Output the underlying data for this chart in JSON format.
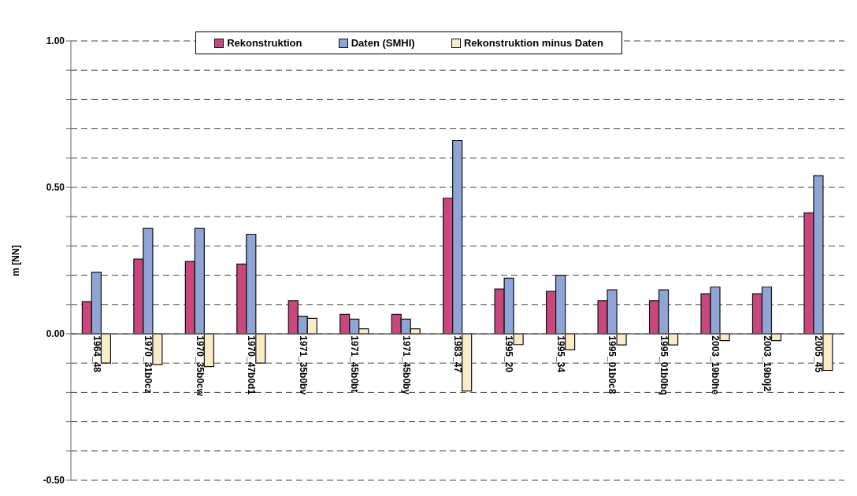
{
  "chart_data": {
    "type": "bar",
    "ylabel": "m [NN]",
    "categories": [
      "1964_48",
      "1970_31b0cz",
      "1970_35b0cw",
      "1970_47b0d1",
      "1971_35b0bv",
      "1971_45b0bt",
      "1971_45b0by",
      "1983_47",
      "1995_20",
      "1995_34",
      "1995_01b0c8",
      "1995_01b0bq",
      "2003_19b0he",
      "2003_19b0j2",
      "2005_45"
    ],
    "series": [
      {
        "name": "Rekonstruktion",
        "color": "#c8487d",
        "values": [
          0.11,
          0.255,
          0.247,
          0.238,
          0.113,
          0.066,
          0.066,
          0.463,
          0.153,
          0.145,
          0.113,
          0.113,
          0.137,
          0.137,
          0.413
        ]
      },
      {
        "name": "Daten (SMHI)",
        "color": "#8fa5d6",
        "values": [
          0.21,
          0.36,
          0.36,
          0.34,
          0.06,
          0.05,
          0.05,
          0.66,
          0.19,
          0.2,
          0.15,
          0.15,
          0.16,
          0.16,
          0.54
        ]
      },
      {
        "name": "Rekonstruktion minus Daten",
        "color": "#f8ecc9",
        "values": [
          -0.1,
          -0.105,
          -0.112,
          -0.1,
          0.053,
          0.017,
          0.017,
          -0.195,
          -0.037,
          -0.055,
          -0.038,
          -0.038,
          -0.023,
          -0.023,
          -0.125
        ]
      }
    ],
    "ylim": [
      -0.5,
      1
    ],
    "yticks": [
      {
        "value": -0.5,
        "label": "-0.50"
      },
      {
        "value": -0.4,
        "label": null
      },
      {
        "value": -0.3,
        "label": null
      },
      {
        "value": -0.2,
        "label": null
      },
      {
        "value": -0.1,
        "label": null
      },
      {
        "value": 0,
        "label": "0.00"
      },
      {
        "value": 0.1,
        "label": null
      },
      {
        "value": 0.2,
        "label": null
      },
      {
        "value": 0.3,
        "label": null
      },
      {
        "value": 0.4,
        "label": null
      },
      {
        "value": 0.5,
        "label": "0.50"
      },
      {
        "value": 0.6,
        "label": null
      },
      {
        "value": 0.7,
        "label": null
      },
      {
        "value": 0.8,
        "label": null
      },
      {
        "value": 0.9,
        "label": null
      },
      {
        "value": 1,
        "label": "1.00"
      }
    ],
    "grid": "y",
    "legend": "top"
  }
}
